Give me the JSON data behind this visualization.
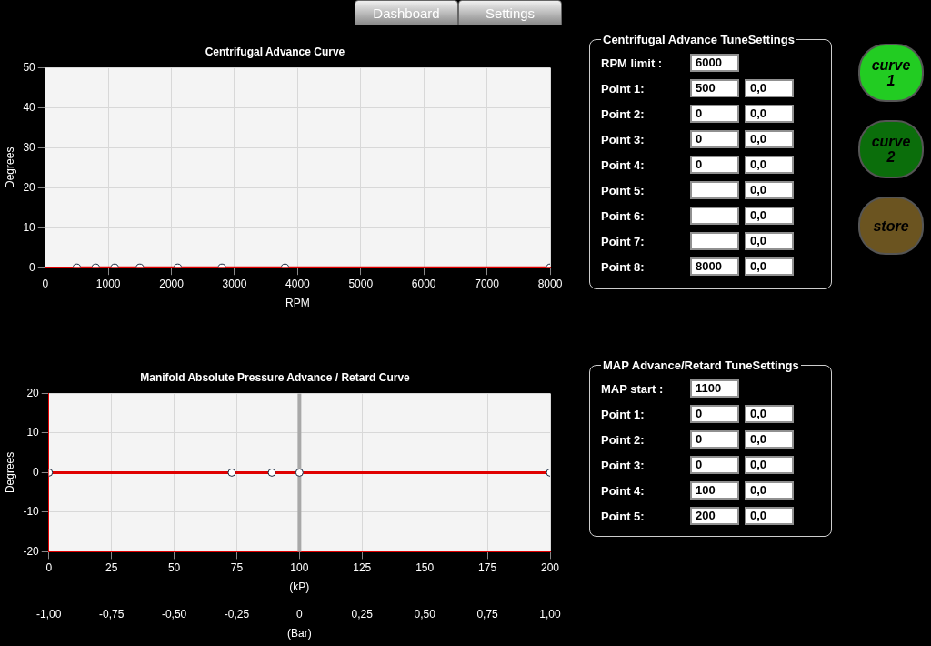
{
  "chart_data": [
    {
      "type": "other",
      "categories": [
        "Dashboard",
        "Settings"
      ]
    },
    {
      "type": "line",
      "title": "Centrifugal Advance Curve",
      "xlabel": "RPM",
      "ylabel": "Degrees",
      "x": [
        500,
        800,
        1100,
        1500,
        2100,
        2800,
        3800,
        8000
      ],
      "series": [
        {
          "color": "#e00000",
          "values": [
            0,
            0,
            0,
            0,
            0,
            0,
            0,
            0
          ]
        }
      ],
      "xlim": [
        0,
        8000
      ],
      "xticks": [
        0,
        1000,
        2000,
        3000,
        4000,
        5000,
        6000,
        7000,
        8000
      ],
      "ylim": [
        0,
        50
      ],
      "yticks": [
        0,
        10,
        20,
        30,
        40,
        50
      ],
      "grid": true,
      "marker": "circle"
    },
    {
      "type": "other",
      "title": "Centrifugal Advance TuneSettings",
      "y_categories": [
        "RPM limit :",
        "Point 1:",
        "Point 2:",
        "Point 3:",
        "Point 4:",
        "Point 5:",
        "Point 6:",
        "Point 7:",
        "Point 8:"
      ],
      "cell_labels": [
        [
          "6000"
        ],
        [
          "500",
          "0,0"
        ],
        [
          "0",
          "0,0"
        ],
        [
          "0",
          "0,0"
        ],
        [
          "0",
          "0,0"
        ],
        [
          null,
          "0,0"
        ],
        [
          null,
          "0,0"
        ],
        [
          null,
          "0,0"
        ],
        [
          "8000",
          "0,0"
        ]
      ]
    },
    {
      "type": "other",
      "categories": [
        "curve 1",
        "curve 2",
        "store"
      ],
      "colors": [
        "#22cc22",
        "#0b6e0b",
        "#6b5420"
      ]
    },
    {
      "type": "line",
      "title": "Manifold Absolute Pressure Advance / Retard Curve",
      "xlabel": "(kP)",
      "ylabel": "Degrees",
      "x2label": "(Bar)",
      "x": [
        0,
        73,
        89,
        100,
        200
      ],
      "series": [
        {
          "color": "#e00000",
          "values": [
            0,
            0,
            0,
            0,
            0
          ]
        }
      ],
      "xlim": [
        0,
        200
      ],
      "xticks": [
        0,
        25,
        50,
        75,
        100,
        125,
        150,
        175,
        200
      ],
      "x2lim": [
        -1,
        1
      ],
      "x2ticks": [
        {
          "value": -1,
          "label": "-1,00"
        },
        {
          "value": -0.75,
          "label": "-0,75"
        },
        {
          "value": -0.5,
          "label": "-0,50"
        },
        {
          "value": -0.25,
          "label": "-0,25"
        },
        {
          "value": 0,
          "label": "0"
        },
        {
          "value": 0.25,
          "label": "0,25"
        },
        {
          "value": 0.5,
          "label": "0,50"
        },
        {
          "value": 0.75,
          "label": "0,75"
        },
        {
          "value": 1,
          "label": "1,00"
        }
      ],
      "ylim": [
        -20,
        20
      ],
      "yticks": [
        -20,
        -10,
        0,
        10,
        20
      ],
      "grid": true,
      "marker": "circle",
      "ref_lines": [
        {
          "axis": "x",
          "value": 100,
          "color": "#a8a8a8"
        }
      ]
    },
    {
      "type": "other",
      "title": "MAP Advance/Retard TuneSettings",
      "y_categories": [
        "MAP start :",
        "Point 1:",
        "Point 2:",
        "Point 3:",
        "Point 4:",
        "Point 5:"
      ],
      "cell_labels": [
        [
          "1100"
        ],
        [
          "0",
          "0,0"
        ],
        [
          "0",
          "0,0"
        ],
        [
          "0",
          "0,0"
        ],
        [
          "100",
          "0,0"
        ],
        [
          "200",
          "0,0"
        ]
      ]
    }
  ]
}
